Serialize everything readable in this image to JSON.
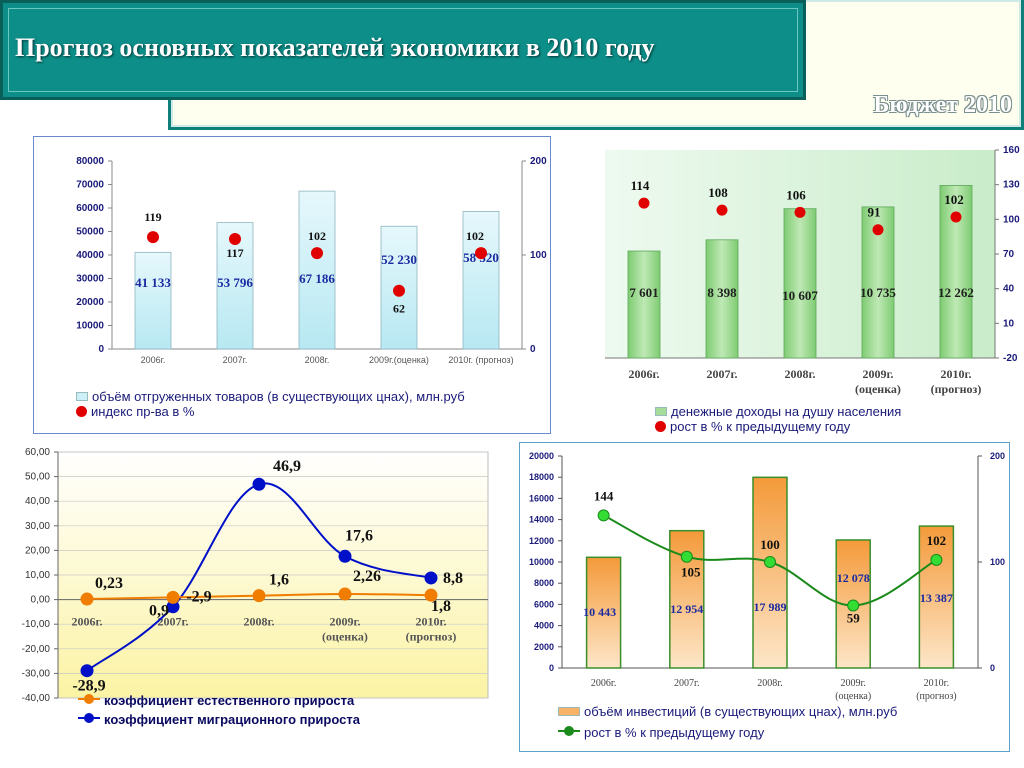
{
  "header": {
    "title": "Прогноз основных показателей экономики в 2010 году",
    "watermark": "Бюджет 2010"
  },
  "colors": {
    "teal": "#0d8e88",
    "red_marker": "#e00000",
    "orange_line": "#f07c00",
    "blue_line": "#0010c8",
    "green_line": "#1a8a1a",
    "green_marker": "#33dd33",
    "cyan_bar": "#cdeff7",
    "green_bar": "#a6dc9a",
    "orange_bar": "#f9b366"
  },
  "chart_data": [
    {
      "id": "shipments",
      "type": "bar",
      "categories": [
        "2006г.",
        "2007г.",
        "2008г.",
        "2009г.(оценка)",
        "2010г. (прогноз)"
      ],
      "series": [
        {
          "name": "объём отгруженных товаров (в существующих цнах), млн.руб",
          "kind": "bar",
          "axis": "left",
          "values": [
            41133,
            53796,
            67186,
            52230,
            58520
          ],
          "labels": [
            "41 133",
            "53 796",
            "67 186",
            "52 230",
            "58 520"
          ]
        },
        {
          "name": "индекс пр-ва в %",
          "kind": "marker",
          "axis": "right",
          "values": [
            119,
            117,
            102,
            62,
            102
          ],
          "labels": [
            "119",
            "117",
            "102",
            "62",
            "102"
          ]
        }
      ],
      "yticks_left": [
        "0",
        "10000",
        "20000",
        "30000",
        "40000",
        "50000",
        "60000",
        "70000",
        "80000"
      ],
      "yticks_right": [
        "0",
        "100",
        "200"
      ],
      "ylim": [
        0,
        80000
      ],
      "ylim_right": [
        0,
        200
      ],
      "legend_position": "bottom"
    },
    {
      "id": "income",
      "type": "bar",
      "categories": [
        "2006г.",
        "2007г.",
        "2008г.",
        "2009г. (оценка)",
        "2010г. (прогноз)"
      ],
      "series": [
        {
          "name": "денежные доходы на душу населения",
          "kind": "bar",
          "axis": "left",
          "values": [
            7601,
            8398,
            10607,
            10735,
            12262
          ],
          "labels": [
            "7 601",
            "8 398",
            "10 607",
            "10 735",
            "12 262"
          ]
        },
        {
          "name": "рост в % к предыдущему году",
          "kind": "marker",
          "axis": "right",
          "values": [
            114,
            108,
            106,
            91,
            102
          ],
          "labels": [
            "114",
            "108",
            "106",
            "91",
            "102"
          ]
        }
      ],
      "yticks_right": [
        "-20",
        "10",
        "40",
        "70",
        "100",
        "130",
        "160"
      ],
      "ylim_right": [
        -20,
        160
      ],
      "legend_position": "bottom"
    },
    {
      "id": "population",
      "type": "line",
      "categories": [
        "2006г.",
        "2007г.",
        "2008г.",
        "2009г. (оценка)",
        "2010г. (прогноз)"
      ],
      "series": [
        {
          "name": "коэффициент естественного прироста",
          "values": [
            0.23,
            0.9,
            1.6,
            2.26,
            1.8
          ],
          "labels": [
            "0,23",
            "0,9",
            "1,6",
            "2,26",
            "1,8"
          ]
        },
        {
          "name": "коэффициент миграционного прироста",
          "values": [
            -28.9,
            -2.9,
            46.9,
            17.6,
            8.8
          ],
          "labels": [
            "-28,9",
            "-2,9",
            "46,9",
            "17,6",
            "8,8"
          ]
        }
      ],
      "yticks": [
        "-40,00",
        "-30,00",
        "-20,00",
        "-10,00",
        "0,00",
        "10,00",
        "20,00",
        "30,00",
        "40,00",
        "50,00",
        "60,00"
      ],
      "ylim": [
        -40,
        60
      ],
      "legend_position": "bottom"
    },
    {
      "id": "investment",
      "type": "bar",
      "categories": [
        "2006г.",
        "2007г.",
        "2008г.",
        "2009г. (оценка)",
        "2010г. (прогноз)"
      ],
      "series": [
        {
          "name": "объём инвестиций (в существующих цнах), млн.руб",
          "kind": "bar",
          "axis": "left",
          "values": [
            10443,
            12954,
            17989,
            12078,
            13387
          ],
          "labels": [
            "10 443",
            "12 954",
            "17 989",
            "12 078",
            "13 387"
          ]
        },
        {
          "name": "рост в % к предыдущему году",
          "kind": "line",
          "axis": "right",
          "values": [
            144,
            105,
            100,
            59,
            102
          ],
          "labels": [
            "144",
            "105",
            "100",
            "59",
            "102"
          ]
        }
      ],
      "yticks_left": [
        "0",
        "2000",
        "4000",
        "6000",
        "8000",
        "10000",
        "12000",
        "14000",
        "16000",
        "18000",
        "20000"
      ],
      "yticks_right": [
        "0",
        "100",
        "200"
      ],
      "ylim": [
        0,
        20000
      ],
      "ylim_right": [
        0,
        200
      ],
      "legend_position": "bottom"
    }
  ]
}
